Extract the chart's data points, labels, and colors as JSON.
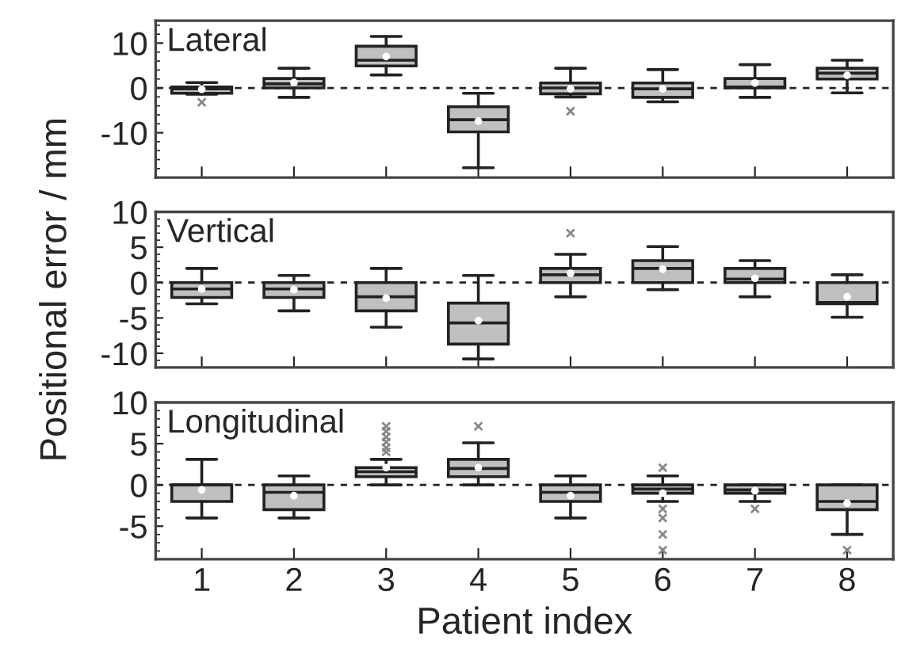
{
  "chart_data": [
    {
      "type": "box",
      "title": "Lateral",
      "categories": [
        "1",
        "2",
        "3",
        "4",
        "5",
        "6",
        "7",
        "8"
      ],
      "color": "#c0c0c0",
      "ylim": [
        -20,
        15
      ],
      "yticks": [
        -10,
        0,
        10
      ],
      "tick_labels": "y",
      "grid": false,
      "ref_lines": [
        {
          "axis": "y",
          "value": 0,
          "line_style": "dashed"
        }
      ],
      "boxes": [
        {
          "low": -1.4,
          "q1": -1.2,
          "median": -0.2,
          "q3": 0.2,
          "high": 1.2,
          "mean": -0.3,
          "outliers": [
            -3.2
          ]
        },
        {
          "low": -2.1,
          "q1": 0,
          "median": 0.9,
          "q3": 2.1,
          "high": 4.4,
          "mean": 1.2
        },
        {
          "low": 2.9,
          "q1": 4.9,
          "median": 6.2,
          "q3": 9.3,
          "high": 11.5,
          "mean": 7
        },
        {
          "low": -17.8,
          "q1": -9.8,
          "median": -7.1,
          "q3": -4.2,
          "high": -1.2,
          "mean": -7.4
        },
        {
          "low": -2,
          "q1": -1.3,
          "median": 0,
          "q3": 1.1,
          "high": 4.4,
          "mean": -0.2,
          "outliers": [
            -5.2
          ]
        },
        {
          "low": -3.1,
          "q1": -2.1,
          "median": -0.2,
          "q3": 1.1,
          "high": 4.1,
          "mean": -0.2
        },
        {
          "low": -2.1,
          "q1": 0,
          "median": 0.2,
          "q3": 2.1,
          "high": 5.2,
          "mean": 1.1
        },
        {
          "low": -1.1,
          "q1": 2,
          "median": 3.3,
          "q3": 4.4,
          "high": 6.2,
          "mean": 2.8
        }
      ]
    },
    {
      "type": "box",
      "title": "Vertical",
      "ylabel": "Positional error / mm",
      "categories": [
        "1",
        "2",
        "3",
        "4",
        "5",
        "6",
        "7",
        "8"
      ],
      "color": "#c0c0c0",
      "ylim": [
        -12,
        10
      ],
      "yticks": [
        -10,
        -5,
        0,
        5,
        10
      ],
      "tick_labels": "y",
      "grid": false,
      "ref_lines": [
        {
          "axis": "y",
          "value": 0,
          "line_style": "dashed"
        }
      ],
      "boxes": [
        {
          "low": -3,
          "q1": -2.1,
          "median": -0.9,
          "q3": 0,
          "high": 2,
          "mean": -0.9
        },
        {
          "low": -4,
          "q1": -2.1,
          "median": -0.9,
          "q3": 0,
          "high": 1,
          "mean": -1
        },
        {
          "low": -6.3,
          "q1": -4,
          "median": -2,
          "q3": 0,
          "high": 2,
          "mean": -2.2
        },
        {
          "low": -10.8,
          "q1": -8.7,
          "median": -5.7,
          "q3": -2.9,
          "high": 1,
          "mean": -5.4
        },
        {
          "low": -2,
          "q1": 0,
          "median": 1.1,
          "q3": 2,
          "high": 4,
          "mean": 1.3,
          "outliers": [
            7
          ]
        },
        {
          "low": -1,
          "q1": 0,
          "median": 2,
          "q3": 3.1,
          "high": 5.1,
          "mean": 1.9
        },
        {
          "low": -2,
          "q1": 0,
          "median": 0.5,
          "q3": 2,
          "high": 3.1,
          "mean": 0.6
        },
        {
          "low": -4.9,
          "q1": -3,
          "median": -2.8,
          "q3": 0,
          "high": 1.1,
          "mean": -2
        }
      ]
    },
    {
      "type": "box",
      "title": "Longitudinal",
      "xlabel": "Patient index",
      "categories": [
        "1",
        "2",
        "3",
        "4",
        "5",
        "6",
        "7",
        "8"
      ],
      "color": "#c0c0c0",
      "ylim": [
        -9,
        10
      ],
      "yticks": [
        -5,
        0,
        5,
        10
      ],
      "grid": false,
      "ref_lines": [
        {
          "axis": "y",
          "value": 0,
          "line_style": "dashed"
        }
      ],
      "boxes": [
        {
          "low": -4,
          "q1": -2,
          "median": 0,
          "q3": 0,
          "high": 3.1,
          "mean": -0.6
        },
        {
          "low": -4,
          "q1": -3,
          "median": -0.9,
          "q3": 0,
          "high": 1.1,
          "mean": -1.3
        },
        {
          "low": 0,
          "q1": 1,
          "median": 1.6,
          "q3": 2.1,
          "high": 3.1,
          "mean": 2.1,
          "outliers": [
            4,
            4.5,
            5.2,
            5.8,
            6.5,
            7.1
          ]
        },
        {
          "low": 0,
          "q1": 1,
          "median": 2,
          "q3": 3.1,
          "high": 5.1,
          "mean": 2.1,
          "outliers": [
            7.1
          ]
        },
        {
          "low": -4,
          "q1": -2,
          "median": -0.9,
          "q3": 0,
          "high": 1.1,
          "mean": -1.3
        },
        {
          "low": -2,
          "q1": -1,
          "median": -0.5,
          "q3": 0,
          "high": 1.1,
          "mean": -1,
          "outliers": [
            2.1,
            -2.9,
            -4,
            -6,
            -7.9
          ]
        },
        {
          "low": -2,
          "q1": -1,
          "median": -0.6,
          "q3": 0,
          "high": 0,
          "mean": -0.7,
          "outliers": [
            -2.9
          ]
        },
        {
          "low": -6,
          "q1": -3,
          "median": -2,
          "q3": 0,
          "high": 0,
          "mean": -2.2,
          "outliers": [
            -7.9
          ]
        }
      ]
    }
  ]
}
